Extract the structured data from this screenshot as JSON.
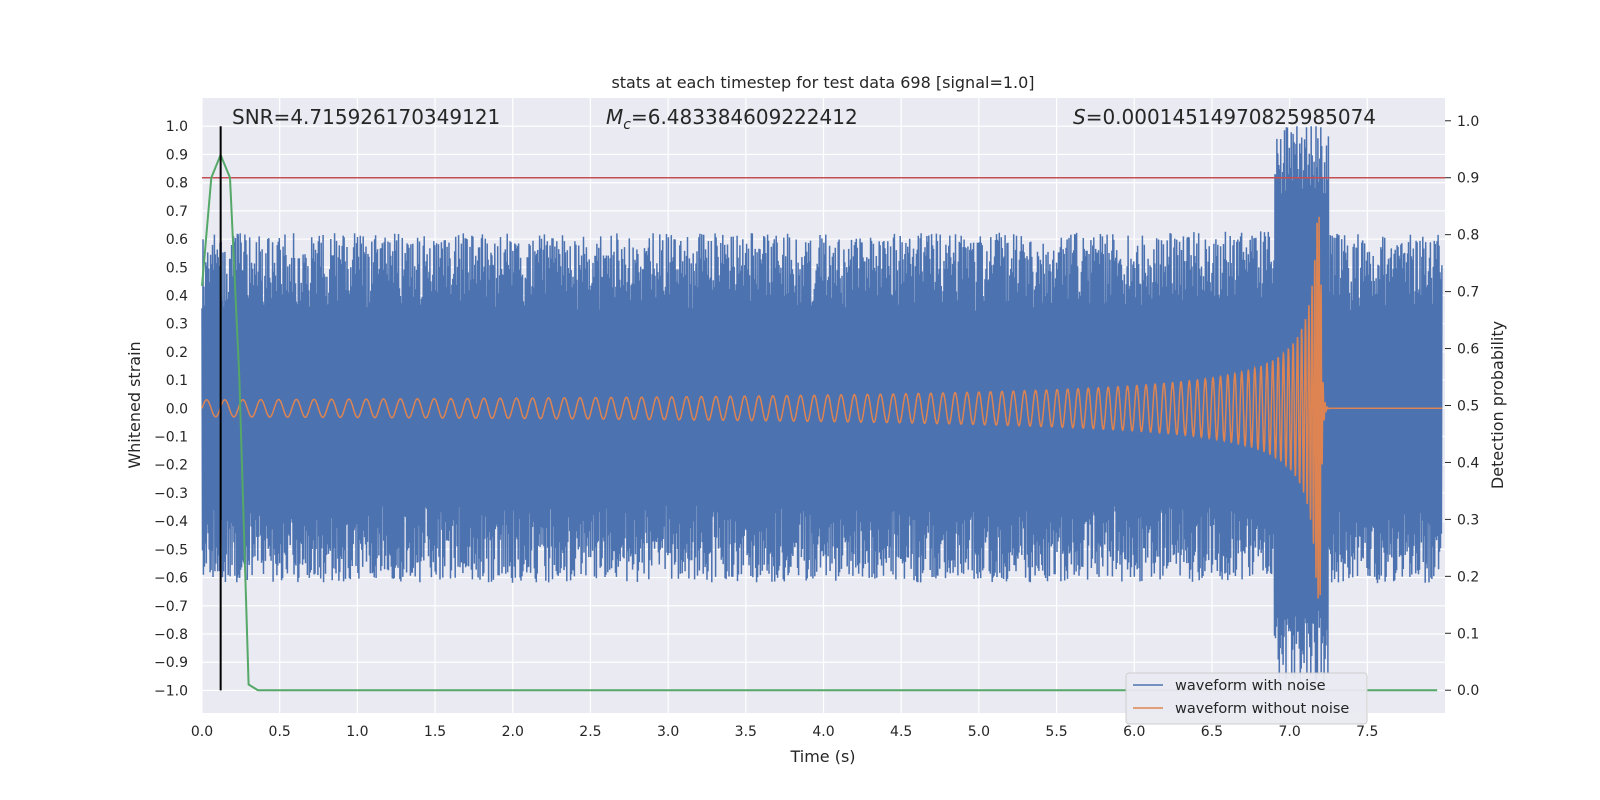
{
  "chart_data": {
    "type": "line",
    "title": "stats at each timestep for test data 698 [signal=1.0]",
    "xlabel": "Time (s)",
    "ylabel": "Whitened strain",
    "y2label": "Detection probability",
    "xlim": [
      0.0,
      8.0
    ],
    "ylim": [
      -1.08,
      1.1
    ],
    "y2lim": [
      -0.04,
      1.04
    ],
    "xticks": [
      "0.0",
      "0.5",
      "1.0",
      "1.5",
      "2.0",
      "2.5",
      "3.0",
      "3.5",
      "4.0",
      "4.5",
      "5.0",
      "5.5",
      "6.0",
      "6.5",
      "7.0",
      "7.5"
    ],
    "yticks": [
      "1.0",
      "0.9",
      "0.8",
      "0.7",
      "0.6",
      "0.5",
      "0.4",
      "0.3",
      "0.2",
      "0.1",
      "0.0",
      "−0.1",
      "−0.2",
      "−0.3",
      "−0.4",
      "−0.5",
      "−0.6",
      "−0.7",
      "−0.8",
      "−0.9",
      "−1.0"
    ],
    "y2ticks": [
      "1.0",
      "0.9",
      "0.8",
      "0.7",
      "0.6",
      "0.5",
      "0.4",
      "0.3",
      "0.2",
      "0.1",
      "0.0"
    ],
    "annotations": {
      "snr_prefix": "SNR=",
      "snr": "4.715926170349121",
      "mc_symbol": "M",
      "mc_sub": "c",
      "mc_value": "=6.483384609222412",
      "s_symbol": "S",
      "s_value": "=0.00014514970825985074"
    },
    "threshold": 0.9,
    "marker_time": 0.12,
    "series": [
      {
        "name": "waveform with noise",
        "color": "#4c72b0",
        "amplitude": 0.62,
        "peak_amplitude": 1.0
      },
      {
        "name": "waveform without noise",
        "color": "#dd8452",
        "start_amplitude": 0.03,
        "merger_time": 7.2,
        "peak_amplitude": 0.68
      },
      {
        "name": "Detection probability",
        "color": "#55a868",
        "axis": "right",
        "x": [
          0.0,
          0.06,
          0.12,
          0.18,
          0.24,
          0.3,
          0.36,
          7.95
        ],
        "y": [
          0.71,
          0.9,
          0.94,
          0.9,
          0.55,
          0.01,
          0.0,
          0.0
        ]
      }
    ],
    "legend": [
      "waveform with noise",
      "waveform without noise"
    ],
    "legend_position": "lower-right"
  }
}
